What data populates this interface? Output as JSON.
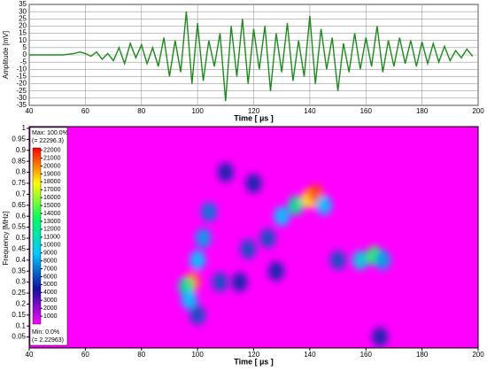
{
  "chart_data": [
    {
      "type": "line",
      "ylabel": "Amplitude [mV]",
      "xlabel": "Time  [ µs ]",
      "x": [
        40,
        42,
        44,
        46,
        48,
        50,
        52,
        54,
        56,
        58,
        60,
        62,
        64,
        66,
        68,
        70,
        72,
        74,
        76,
        78,
        80,
        82,
        84,
        86,
        88,
        90,
        92,
        94,
        96,
        98,
        100,
        102,
        104,
        106,
        108,
        110,
        112,
        114,
        116,
        118,
        120,
        122,
        124,
        126,
        128,
        130,
        132,
        134,
        136,
        138,
        140,
        142,
        144,
        146,
        148,
        150,
        152,
        154,
        156,
        158,
        160,
        162,
        164,
        166,
        168,
        170,
        172,
        174,
        176,
        178,
        180,
        182,
        184,
        186,
        188,
        190,
        192,
        194,
        196,
        198
      ],
      "values": [
        0,
        0,
        0,
        0,
        0,
        0,
        0,
        0.5,
        1,
        2,
        1,
        -1,
        2,
        -3,
        1,
        -4,
        5,
        -6,
        8,
        -2,
        7,
        -6,
        5,
        -8,
        12,
        -15,
        10,
        -12,
        30,
        -20,
        22,
        -18,
        10,
        -8,
        15,
        -32,
        20,
        -15,
        25,
        -20,
        18,
        -10,
        20,
        -25,
        15,
        -12,
        22,
        -18,
        10,
        -15,
        27,
        -20,
        18,
        -10,
        12,
        -25,
        8,
        -12,
        15,
        -10,
        12,
        -8,
        20,
        -12,
        10,
        -8,
        12,
        -6,
        10,
        -8,
        9,
        -6,
        8,
        -5,
        6,
        -4,
        3,
        -2,
        4,
        -1
      ],
      "color": "#1a8c1a",
      "xlim": [
        40,
        200
      ],
      "xticks": [
        40,
        60,
        80,
        100,
        120,
        140,
        160,
        180,
        200
      ],
      "ylim": [
        -35,
        35
      ],
      "yticks": [
        -35,
        -30,
        -25,
        -20,
        -15,
        -10,
        -5,
        0,
        5,
        10,
        15,
        20,
        25,
        30,
        35
      ],
      "grid": true
    },
    {
      "type": "heatmap",
      "ylabel": "Frequency [MHz]",
      "xlabel": "Time  [ µs ]",
      "blobs": [
        {
          "x": 98,
          "y": 0.3,
          "value": 20000
        },
        {
          "x": 96,
          "y": 0.28,
          "value": 12000
        },
        {
          "x": 97,
          "y": 0.22,
          "value": 9000
        },
        {
          "x": 100,
          "y": 0.4,
          "value": 9000
        },
        {
          "x": 102,
          "y": 0.5,
          "value": 8000
        },
        {
          "x": 104,
          "y": 0.62,
          "value": 7000
        },
        {
          "x": 108,
          "y": 0.3,
          "value": 6000
        },
        {
          "x": 115,
          "y": 0.3,
          "value": 5000
        },
        {
          "x": 118,
          "y": 0.45,
          "value": 6000
        },
        {
          "x": 125,
          "y": 0.5,
          "value": 6000
        },
        {
          "x": 128,
          "y": 0.35,
          "value": 5000
        },
        {
          "x": 130,
          "y": 0.6,
          "value": 9000
        },
        {
          "x": 135,
          "y": 0.65,
          "value": 12000
        },
        {
          "x": 140,
          "y": 0.68,
          "value": 18000
        },
        {
          "x": 142,
          "y": 0.7,
          "value": 21000
        },
        {
          "x": 145,
          "y": 0.65,
          "value": 9000
        },
        {
          "x": 150,
          "y": 0.4,
          "value": 6000
        },
        {
          "x": 158,
          "y": 0.4,
          "value": 10000
        },
        {
          "x": 163,
          "y": 0.42,
          "value": 14000
        },
        {
          "x": 166,
          "y": 0.4,
          "value": 8000
        },
        {
          "x": 110,
          "y": 0.8,
          "value": 5000
        },
        {
          "x": 120,
          "y": 0.75,
          "value": 5000
        },
        {
          "x": 100,
          "y": 0.15,
          "value": 6000
        },
        {
          "x": 165,
          "y": 0.05,
          "value": 5000
        }
      ],
      "xlim": [
        40,
        200
      ],
      "xticks": [
        40,
        60,
        80,
        100,
        120,
        140,
        160,
        180,
        200
      ],
      "ylim": [
        0,
        1
      ],
      "yticks": [
        0.05,
        0.1,
        0.15,
        0.2,
        0.25,
        0.3,
        0.35,
        0.4,
        0.45,
        0.5,
        0.55,
        0.6,
        0.65,
        0.7,
        0.75,
        0.8,
        0.85,
        0.9,
        0.95,
        1
      ],
      "clim": [
        2.22963,
        22296.3
      ],
      "cticks": [
        1000,
        2000,
        3000,
        4000,
        5000,
        6000,
        7000,
        8000,
        9000,
        10000,
        11000,
        12000,
        13000,
        14000,
        15000,
        16000,
        17000,
        18000,
        19000,
        20000,
        21000,
        22000
      ],
      "colormap": [
        "#ff00ff",
        "#1010a0",
        "#00c8ff",
        "#00ff60",
        "#ffff00",
        "#ff0000"
      ],
      "max_label": "Max: 100.0%",
      "max_value_label": "(= 22296.3)",
      "min_label": "Min: 0.0%",
      "min_value_label": "(= 2.22963)"
    }
  ]
}
